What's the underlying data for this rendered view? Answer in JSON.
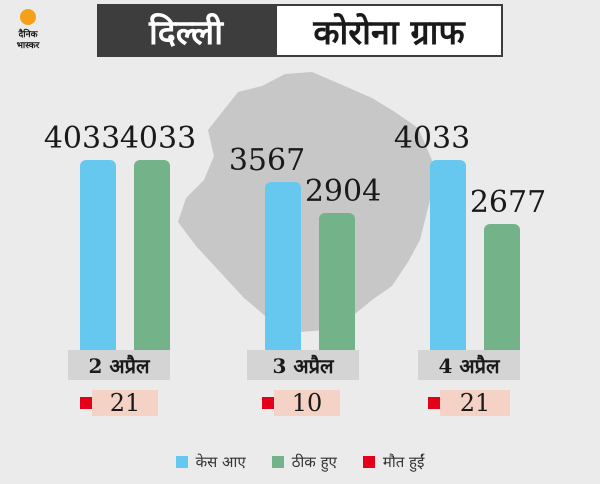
{
  "header": {
    "logo_line1": "दैनिक",
    "logo_line2": "भास्कर",
    "title_left": "दिल्ली",
    "title_right": "कोरोना ग्राफ"
  },
  "colors": {
    "cases": "#67c8ef",
    "recovered": "#74b38a",
    "deaths": "#e3001b",
    "logo_sun": "#f6a019"
  },
  "chart_data": {
    "type": "bar",
    "categories": [
      "2 अप्रैल",
      "3 अप्रैल",
      "4 अप्रैल"
    ],
    "series": [
      {
        "name": "केस आए",
        "values": [
          4033,
          3567,
          4033
        ]
      },
      {
        "name": "ठीक हुए",
        "values": [
          4033,
          2904,
          2677
        ]
      },
      {
        "name": "मौत हुईं",
        "values": [
          21,
          10,
          21
        ]
      }
    ],
    "legend_position": "bottom"
  },
  "labels": {
    "cases": [
      "4033",
      "3567",
      "4033"
    ],
    "recovered": [
      "4033",
      "2904",
      "2677"
    ],
    "deaths": [
      "21",
      "10",
      "21"
    ],
    "dates": [
      "2 अप्रैल",
      "3 अप्रैल",
      "4 अप्रैल"
    ]
  },
  "legend": [
    {
      "label": "केस आए",
      "color": "#67c8ef"
    },
    {
      "label": "ठीक हुए",
      "color": "#74b38a"
    },
    {
      "label": "मौत हुईं",
      "color": "#e3001b"
    }
  ]
}
